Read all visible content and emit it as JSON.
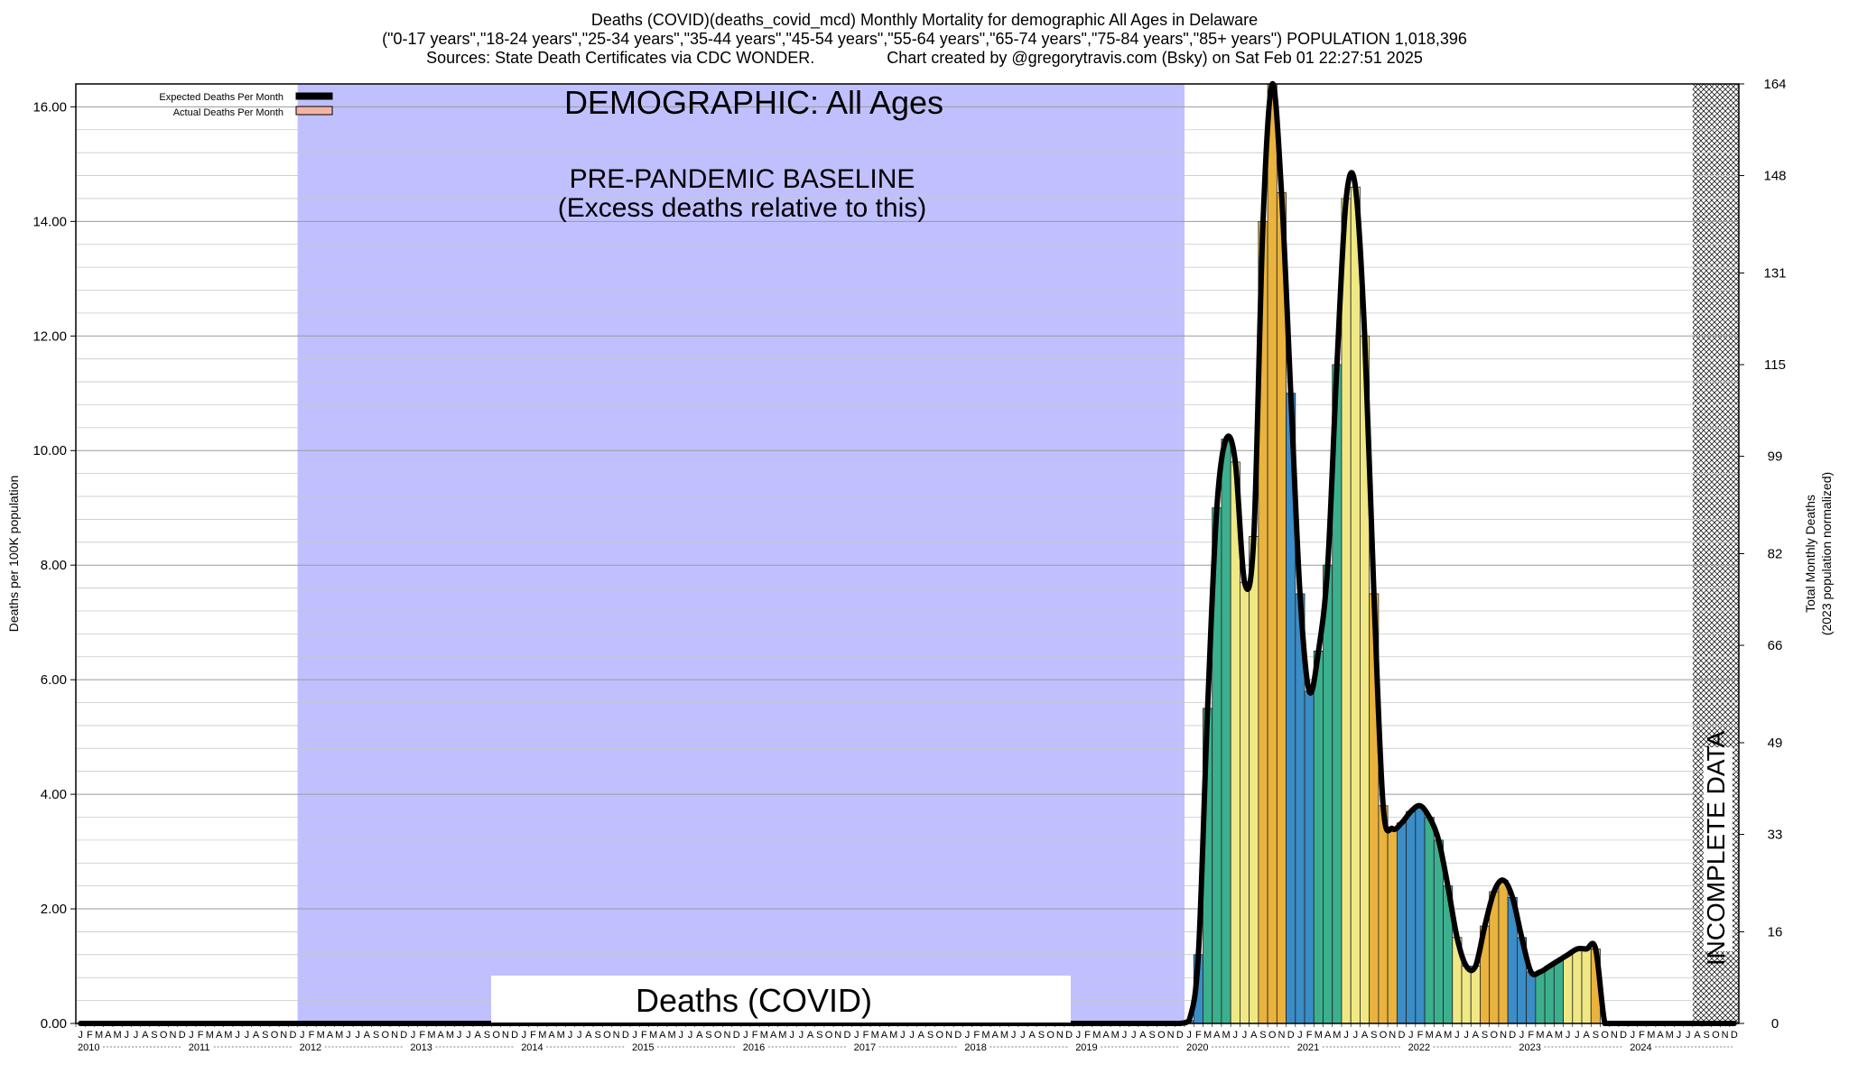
{
  "chart_data": {
    "type": "bar",
    "title_lines": [
      "Deaths (COVID)(deaths_covid_mcd) Monthly Mortality for demographic All Ages in Delaware",
      "(\"0-17 years\",\"18-24 years\",\"25-34 years\",\"35-44 years\",\"45-54 years\",\"55-64 years\",\"65-74 years\",\"75-84 years\",\"85+ years\") POPULATION 1,018,396",
      "Sources: State Death Certificates via CDC WONDER.                Chart created by @gregorytravis.com (Bsky) on Sat Feb 01 22:27:51 2025"
    ],
    "ylabel_left": "Deaths per 100K population",
    "ylabel_right": [
      "Total Monthly Deaths",
      "(2023 population normalized)"
    ],
    "ylim": [
      0,
      16.4
    ],
    "left_ticks": [
      "0.00",
      "2.00",
      "4.00",
      "6.00",
      "8.00",
      "10.00",
      "12.00",
      "14.00",
      "16.00"
    ],
    "right_ticks": [
      "0",
      "16",
      "33",
      "49",
      "66",
      "82",
      "99",
      "115",
      "131",
      "148",
      "164"
    ],
    "legend": [
      {
        "label": "Expected Deaths Per Month",
        "color": "#000000"
      },
      {
        "label": "Actual Deaths Per Month",
        "color": "#f4b4a4"
      }
    ],
    "legend_placement": "top-left",
    "grid": true,
    "month_letters": [
      "J",
      "F",
      "M",
      "A",
      "M",
      "J",
      "J",
      "A",
      "S",
      "O",
      "N",
      "D"
    ],
    "years": [
      "2010",
      "2011",
      "2012",
      "2013",
      "2014",
      "2015",
      "2016",
      "2017",
      "2018",
      "2019",
      "2020",
      "2021",
      "2022",
      "2023",
      "2024"
    ],
    "annotations": {
      "demographic": "DEMOGRAPHIC: All Ages",
      "baseline_line1": "PRE-PANDEMIC BASELINE",
      "baseline_line2": "(Excess deaths relative to this)",
      "metric_label": "Deaths (COVID)",
      "incomplete": "INCOMPLETE DATA"
    },
    "baseline_period": [
      "2012-01",
      "2019-12"
    ],
    "incomplete_period": [
      "2024-08",
      "2024-12"
    ],
    "series": [
      {
        "name": "Actual Deaths Per Month",
        "start": "2020-01",
        "values": [
          0.05,
          1.2,
          5.5,
          9.0,
          10.2,
          9.8,
          7.7,
          8.5,
          14.0,
          16.4,
          14.5,
          11.0,
          7.5,
          5.8,
          6.5,
          8.0,
          11.5,
          14.4,
          14.6,
          12.0,
          7.5,
          3.8,
          3.4,
          3.5,
          3.7,
          3.8,
          3.6,
          3.2,
          2.4,
          1.5,
          1.0,
          1.0,
          1.7,
          2.3,
          2.5,
          2.2,
          1.5,
          0.9,
          0.9,
          1.0,
          1.1,
          1.2,
          1.3,
          1.3,
          1.3
        ]
      }
    ],
    "colors": {
      "baseline": "#c0c0ff",
      "bar_palette": [
        "#f0e884",
        "#e9b33d",
        "#3a8dc6",
        "#3cb08e"
      ]
    }
  }
}
